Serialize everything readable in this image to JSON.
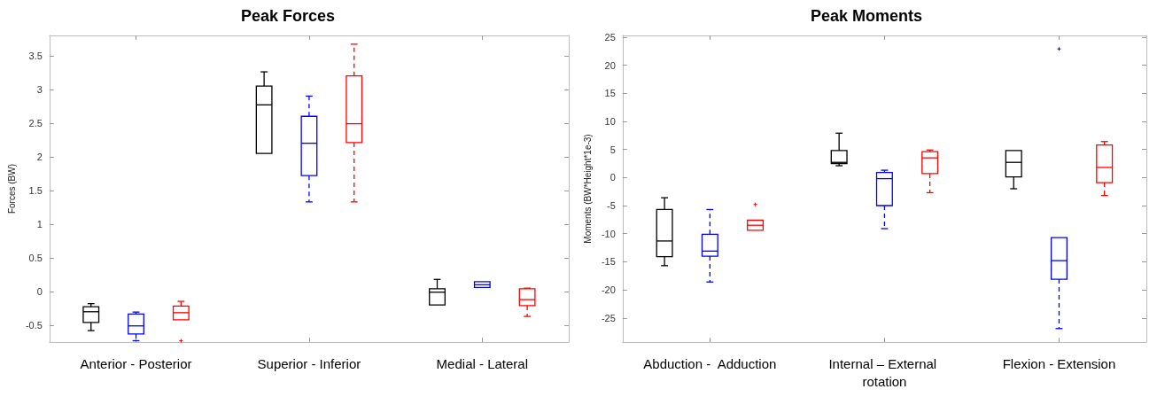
{
  "chart_data": [
    {
      "type": "box",
      "title": "Peak Forces",
      "ylabel": "Forces (BW)",
      "categories": [
        "Anterior - Posterior",
        "Superior - Inferior",
        "Medial - Lateral"
      ],
      "ylim": [
        -0.75,
        3.8
      ],
      "yticks": [
        -0.5,
        0,
        0.5,
        1,
        1.5,
        2,
        2.5,
        3,
        3.5
      ],
      "grid": false,
      "marker": "cross",
      "series": [
        {
          "color": "#000000",
          "line_style": "solid",
          "boxes": [
            {
              "low": -0.58,
              "q1": -0.46,
              "median": -0.3,
              "q3": -0.225,
              "high": -0.18
            },
            {
              "low": 2.05,
              "q1": 2.05,
              "median": 2.77,
              "q3": 3.05,
              "high": 3.26
            },
            {
              "low": -0.2,
              "q1": -0.2,
              "median": -0.01,
              "q3": 0.04,
              "high": 0.18
            }
          ]
        },
        {
          "color": "#0000ff",
          "line_style": "dashed",
          "boxes": [
            {
              "low": -0.73,
              "q1": -0.63,
              "median": -0.51,
              "q3": -0.335,
              "high": -0.305
            },
            {
              "low": 1.33,
              "q1": 1.72,
              "median": 2.2,
              "q3": 2.6,
              "high": 2.9
            },
            {
              "low": 0.06,
              "q1": 0.06,
              "median": 0.1,
              "q3": 0.145,
              "high": 0.145
            }
          ]
        },
        {
          "color": "#ff0000",
          "line_style": "dashed",
          "boxes": [
            {
              "low": -0.42,
              "q1": -0.42,
              "median": -0.314,
              "q3": -0.217,
              "high": -0.146,
              "outliers": [
                -0.73
              ]
            },
            {
              "low": 1.33,
              "q1": 2.21,
              "median": 2.49,
              "q3": 3.2,
              "high": 3.67
            },
            {
              "low": -0.37,
              "q1": -0.21,
              "median": -0.12,
              "q3": 0.04,
              "high": 0.05
            }
          ]
        }
      ]
    },
    {
      "type": "box",
      "title": "Peak Moments",
      "ylabel": "Moments (BW*Height*1e-3)",
      "categories": [
        "Abduction -  Adduction",
        "Internal – External rotation",
        "Flexion - Extension"
      ],
      "ylim": [
        -29.3,
        25.3
      ],
      "yticks": [
        -25,
        -20,
        -15,
        -10,
        -5,
        0,
        5,
        10,
        15,
        20,
        25
      ],
      "grid": false,
      "marker": "cross",
      "series": [
        {
          "color": "#000000",
          "line_style": "solid",
          "boxes": [
            {
              "low": -15.7,
              "q1": -14.1,
              "median": -11.3,
              "q3": -5.7,
              "high": -3.6
            },
            {
              "low": 2.1,
              "q1": 2.5,
              "median": 2.7,
              "q3": 4.8,
              "high": 7.9
            },
            {
              "low": -2.0,
              "q1": 0.1,
              "median": 2.7,
              "q3": 4.8,
              "high": 4.8
            }
          ]
        },
        {
          "color": "#0000ff",
          "line_style": "dashed",
          "boxes": [
            {
              "low": -18.6,
              "q1": -14.0,
              "median": -13.1,
              "q3": -10.1,
              "high": -5.7
            },
            {
              "low": -9.1,
              "q1": -5.0,
              "median": -0.2,
              "q3": 0.9,
              "high": 1.3
            },
            {
              "low": -26.9,
              "q1": -18.1,
              "median": -14.8,
              "q3": -10.7,
              "high": -10.7,
              "outliers": [
                22.9
              ]
            }
          ]
        },
        {
          "color": "#ff0000",
          "line_style": "dashed",
          "boxes": [
            {
              "low": -9.4,
              "q1": -9.4,
              "median": -8.5,
              "q3": -7.6,
              "high": -7.6,
              "outliers": [
                -4.8
              ]
            },
            {
              "low": -2.7,
              "q1": 0.7,
              "median": 3.5,
              "q3": 4.6,
              "high": 4.9
            },
            {
              "low": -3.2,
              "q1": -0.9,
              "median": 1.8,
              "q3": 5.8,
              "high": 6.4
            }
          ]
        }
      ]
    }
  ]
}
